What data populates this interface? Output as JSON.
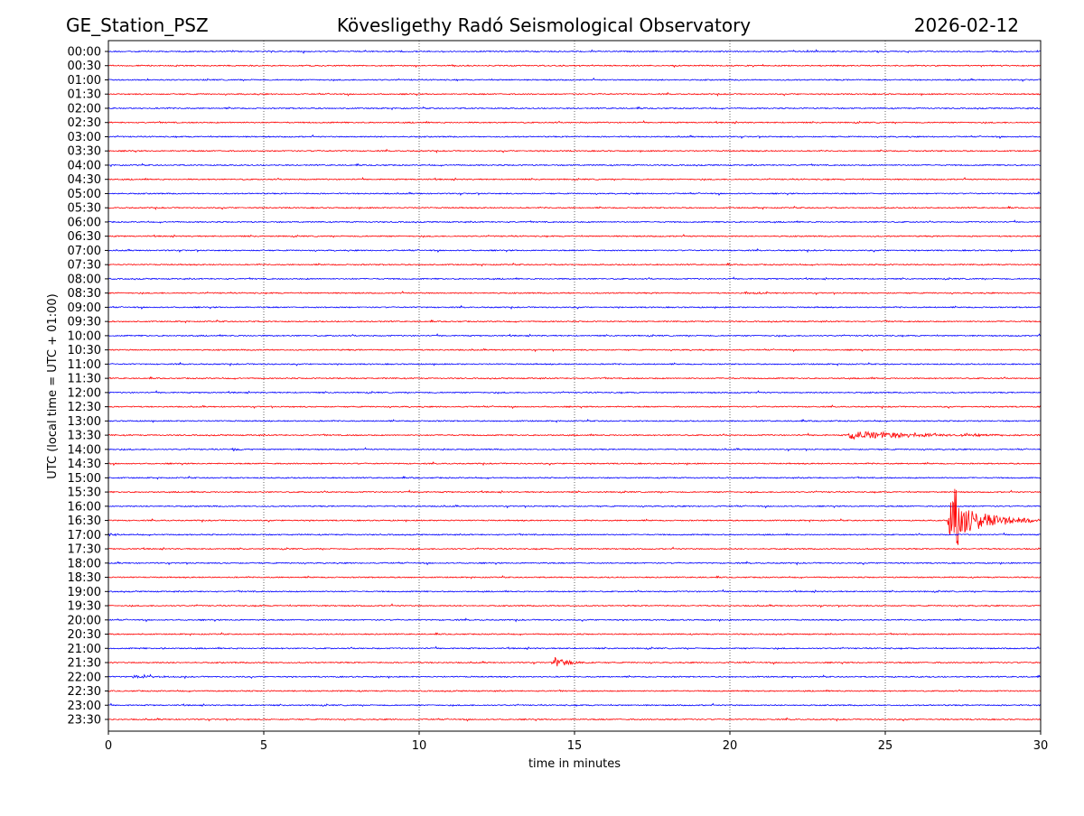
{
  "chart_data": {
    "type": "line",
    "title_left": "GE_Station_PSZ",
    "title_center": "Kövesligethy Radó Seismological Observatory",
    "title_right": "2026-02-12",
    "xlabel": "time in minutes",
    "ylabel": "UTC (local time = UTC + 01:00)",
    "xlim": [
      0,
      30
    ],
    "xticks": [
      0,
      5,
      10,
      15,
      20,
      25,
      30
    ],
    "grid": "vertical dotted at 5-minute intervals",
    "row_labels": [
      "00:00",
      "00:30",
      "01:00",
      "01:30",
      "02:00",
      "02:30",
      "03:00",
      "03:30",
      "04:00",
      "04:30",
      "05:00",
      "05:30",
      "06:00",
      "06:30",
      "07:00",
      "07:30",
      "08:00",
      "08:30",
      "09:00",
      "09:30",
      "10:00",
      "10:30",
      "11:00",
      "11:30",
      "12:00",
      "12:30",
      "13:00",
      "13:30",
      "14:00",
      "14:30",
      "15:00",
      "15:30",
      "16:00",
      "16:30",
      "17:00",
      "17:30",
      "18:00",
      "18:30",
      "19:00",
      "19:30",
      "20:00",
      "20:30",
      "21:00",
      "21:30",
      "22:00",
      "22:30",
      "23:00",
      "23:30"
    ],
    "trace_colors": [
      "#0000ff",
      "#ff0000"
    ],
    "events": [
      {
        "row": "08:30",
        "start_min": 20.4,
        "duration_min": 1.0,
        "relative_amplitude": 0.25
      },
      {
        "row": "13:30",
        "start_min": 23.8,
        "duration_min": 6.2,
        "relative_amplitude": 0.7
      },
      {
        "row": "14:00",
        "start_min": 3.9,
        "duration_min": 1.2,
        "relative_amplitude": 0.2
      },
      {
        "row": "14:00",
        "start_min": 10.7,
        "duration_min": 0.4,
        "relative_amplitude": 0.3
      },
      {
        "row": "16:30",
        "start_min": 27.0,
        "duration_min": 3.0,
        "relative_amplitude": 3.2
      },
      {
        "row": "17:00",
        "start_min": 0.0,
        "duration_min": 0.6,
        "relative_amplitude": 0.25
      },
      {
        "row": "21:00",
        "start_min": 1.7,
        "duration_min": 0.4,
        "relative_amplitude": 0.2
      },
      {
        "row": "21:30",
        "start_min": 14.3,
        "duration_min": 1.2,
        "relative_amplitude": 0.9
      },
      {
        "row": "22:00",
        "start_min": 0.7,
        "duration_min": 1.6,
        "relative_amplitude": 0.35
      }
    ]
  }
}
